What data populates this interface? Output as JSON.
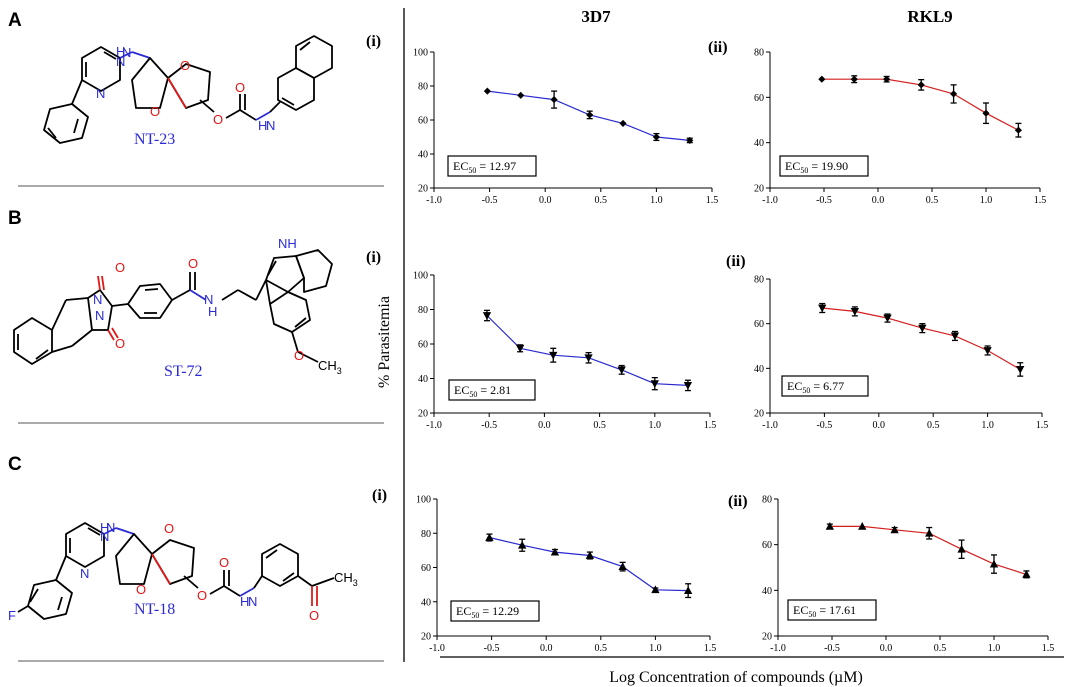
{
  "panels": {
    "A": {
      "letter": "A",
      "compound": "NT-23"
    },
    "B": {
      "letter": "B",
      "compound": "ST-72"
    },
    "C": {
      "letter": "C",
      "compound": "NT-18"
    }
  },
  "atoms": {
    "H": "H",
    "N": "N",
    "O": "O",
    "F": "F",
    "NH": "NH",
    "CH3_main": "CH",
    "CH3_sub": "3"
  },
  "columns": {
    "left": "3D7",
    "right": "RKL9"
  },
  "ylabel": "% Parasitemia",
  "xlabel": "Log Concentration of compounds (µM)",
  "colors": {
    "blue": "#2a2ad0",
    "red": "#d41f1f",
    "black": "#000000",
    "molecule_blue": "#2b2bd6",
    "bond_red": "#e01818"
  },
  "ec_prefix": "EC",
  "ec_sub": "50",
  "chart_data": [
    {
      "type": "line",
      "row": "A",
      "strain": "3D7",
      "sublabel": "(i)",
      "color": "#2a2ad0",
      "marker": "diamond",
      "x": [
        -0.52,
        -0.22,
        0.08,
        0.4,
        0.7,
        1.0,
        1.3
      ],
      "y": [
        77,
        74.5,
        72,
        63,
        58,
        50,
        48
      ],
      "err": [
        0,
        0,
        5,
        2.2,
        0,
        2,
        1.3
      ],
      "ylim": [
        20,
        100
      ],
      "yticks": [
        20,
        40,
        60,
        80,
        100
      ],
      "xlim": [
        -1.0,
        1.5
      ],
      "xticks": [
        "-1.0",
        "-0.5",
        "0.0",
        "0.5",
        "1.0",
        "1.5"
      ],
      "ec50": "= 12.97"
    },
    {
      "type": "line",
      "row": "A",
      "strain": "RKL9",
      "sublabel": "(ii)",
      "color": "#d41f1f",
      "marker": "diamond",
      "x": [
        -0.52,
        -0.22,
        0.08,
        0.4,
        0.7,
        1.0,
        1.3
      ],
      "y": [
        68,
        68,
        68,
        65.5,
        61.5,
        53,
        45.5
      ],
      "err": [
        0,
        1.5,
        1.2,
        2.3,
        4,
        4.5,
        3
      ],
      "ylim": [
        20,
        80
      ],
      "yticks": [
        20,
        40,
        60,
        80
      ],
      "xlim": [
        -1.0,
        1.5
      ],
      "xticks": [
        "-1.0",
        "-0.5",
        "0.0",
        "0.5",
        "1.0",
        "1.5"
      ],
      "ec50": "= 19.90"
    },
    {
      "type": "line",
      "row": "B",
      "strain": "3D7",
      "sublabel": "(i)",
      "color": "#2a2ad0",
      "marker": "tri-down",
      "x": [
        -0.52,
        -0.22,
        0.08,
        0.4,
        0.7,
        1.0,
        1.3
      ],
      "y": [
        76.5,
        57.5,
        53.5,
        52,
        45,
        37,
        36
      ],
      "err": [
        3,
        2,
        4,
        3,
        2.5,
        3.5,
        3
      ],
      "ylim": [
        20,
        100
      ],
      "yticks": [
        20,
        40,
        60,
        80,
        100
      ],
      "xlim": [
        -1.0,
        1.5
      ],
      "xticks": [
        "-1.0",
        "-0.5",
        "0.0",
        "0.5",
        "1.0",
        "1.5"
      ],
      "ec50": "= 2.81"
    },
    {
      "type": "line",
      "row": "B",
      "strain": "RKL9",
      "sublabel": "(ii)",
      "color": "#d41f1f",
      "marker": "tri-down",
      "x": [
        -0.52,
        -0.22,
        0.08,
        0.4,
        0.7,
        1.0,
        1.3
      ],
      "y": [
        67,
        65.5,
        62.5,
        58,
        54.5,
        48,
        39.5
      ],
      "err": [
        2,
        2,
        1.8,
        2,
        2,
        2,
        3
      ],
      "ylim": [
        20,
        80
      ],
      "yticks": [
        20,
        40,
        60,
        80
      ],
      "xlim": [
        -1.0,
        1.5
      ],
      "xticks": [
        "-1.0",
        "-0.5",
        "0.0",
        "0.5",
        "1.0",
        "1.5"
      ],
      "ec50": "= 6.77"
    },
    {
      "type": "line",
      "row": "C",
      "strain": "3D7",
      "sublabel": "(i)",
      "color": "#2a2ad0",
      "marker": "tri-up",
      "x": [
        -0.52,
        -0.22,
        0.08,
        0.4,
        0.7,
        1.0,
        1.3
      ],
      "y": [
        77.5,
        73,
        69,
        67,
        60.5,
        47,
        46.5
      ],
      "err": [
        2,
        3.5,
        1.5,
        2,
        2.5,
        1,
        4
      ],
      "ylim": [
        20,
        100
      ],
      "yticks": [
        20,
        40,
        60,
        80,
        100
      ],
      "xlim": [
        -1.0,
        1.5
      ],
      "xticks": [
        "-1.0",
        "-0.5",
        "0.0",
        "0.5",
        "1.0",
        "1.5"
      ],
      "ec50": "= 12.29"
    },
    {
      "type": "line",
      "row": "C",
      "strain": "RKL9",
      "sublabel": "(ii)",
      "color": "#d41f1f",
      "marker": "tri-up",
      "x": [
        -0.52,
        -0.22,
        0.08,
        0.4,
        0.7,
        1.0,
        1.3
      ],
      "y": [
        68,
        68,
        66.5,
        65,
        58,
        51.5,
        47
      ],
      "err": [
        1,
        0,
        1,
        2.5,
        4,
        4,
        1.5
      ],
      "ylim": [
        20,
        80
      ],
      "yticks": [
        20,
        40,
        60,
        80
      ],
      "xlim": [
        -1.0,
        1.5
      ],
      "xticks": [
        "-1.0",
        "-0.5",
        "0.0",
        "0.5",
        "1.0",
        "1.5"
      ],
      "ec50": "= 17.61"
    }
  ]
}
